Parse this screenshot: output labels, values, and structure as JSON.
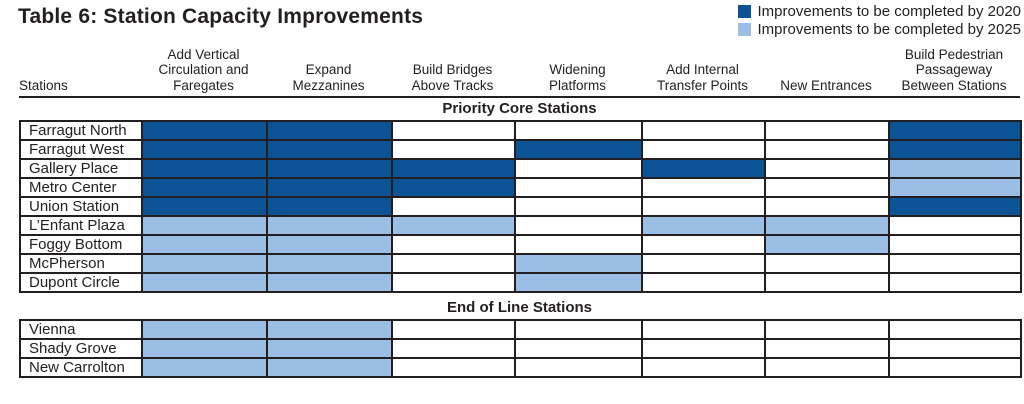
{
  "title": "Table 6: Station Capacity Improvements",
  "colors": {
    "2020": "#0b5394",
    "2025": "#9bbfe4",
    "border": "#231f20",
    "text": "#231f20"
  },
  "legend": {
    "items": [
      {
        "key": "2020",
        "label": "Improvements to be completed by 2020"
      },
      {
        "key": "2025",
        "label": "Improvements to be completed by 2025"
      }
    ]
  },
  "columns": [
    "Stations",
    "Add Vertical\nCirculation and\nFaregates",
    "Expand\nMezzanines",
    "Build Bridges\nAbove Tracks",
    "Widening\nPlatforms",
    "Add Internal\nTransfer Points",
    "New Entrances",
    "Build Pedestrian\nPassageway\nBetween Stations"
  ],
  "sections": [
    {
      "heading": "Priority Core Stations",
      "rows": [
        {
          "station": "Farragut North",
          "cells": [
            "2020",
            "2020",
            "",
            "",
            "",
            "",
            "2020"
          ]
        },
        {
          "station": "Farragut West",
          "cells": [
            "2020",
            "2020",
            "",
            "2020",
            "",
            "",
            "2020"
          ]
        },
        {
          "station": "Gallery Place",
          "cells": [
            "2020",
            "2020",
            "2020",
            "",
            "2020",
            "",
            "2025"
          ]
        },
        {
          "station": "Metro Center",
          "cells": [
            "2020",
            "2020",
            "2020",
            "",
            "",
            "",
            "2025"
          ]
        },
        {
          "station": "Union Station",
          "cells": [
            "2020",
            "2020",
            "",
            "",
            "",
            "",
            "2020"
          ]
        },
        {
          "station": "L’Enfant Plaza",
          "cells": [
            "2025",
            "2025",
            "2025",
            "",
            "2025",
            "2025",
            ""
          ]
        },
        {
          "station": "Foggy Bottom",
          "cells": [
            "2025",
            "2025",
            "",
            "",
            "",
            "2025",
            ""
          ]
        },
        {
          "station": "McPherson",
          "cells": [
            "2025",
            "2025",
            "",
            "2025",
            "",
            "",
            ""
          ]
        },
        {
          "station": "Dupont Circle",
          "cells": [
            "2025",
            "2025",
            "",
            "2025",
            "",
            "",
            ""
          ]
        }
      ]
    },
    {
      "heading": "End of Line Stations",
      "rows": [
        {
          "station": "Vienna",
          "cells": [
            "2025",
            "2025",
            "",
            "",
            "",
            "",
            ""
          ]
        },
        {
          "station": "Shady Grove",
          "cells": [
            "2025",
            "2025",
            "",
            "",
            "",
            "",
            ""
          ]
        },
        {
          "station": "New Carrolton",
          "cells": [
            "2025",
            "2025",
            "",
            "",
            "",
            "",
            ""
          ]
        }
      ]
    }
  ]
}
